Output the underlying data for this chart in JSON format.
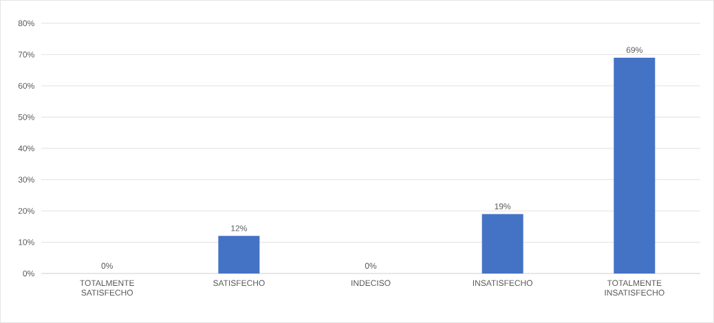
{
  "chart_data": {
    "type": "bar",
    "categories": [
      "TOTALMENTE SATISFECHO",
      "SATISFECHO",
      "INDECISO",
      "INSATISFECHO",
      "TOTALMENTE INSATISFECHO"
    ],
    "values": [
      0,
      12,
      0,
      19,
      69
    ],
    "value_labels": [
      "0%",
      "12%",
      "0%",
      "19%",
      "69%"
    ],
    "color": "#4472c4",
    "ylim": [
      0,
      80
    ],
    "yticks": [
      {
        "value": 0,
        "label": "0%"
      },
      {
        "value": 10,
        "label": "10%"
      },
      {
        "value": 20,
        "label": "20%"
      },
      {
        "value": 30,
        "label": "30%"
      },
      {
        "value": 40,
        "label": "40%"
      },
      {
        "value": 50,
        "label": "50%"
      },
      {
        "value": 60,
        "label": "60%"
      },
      {
        "value": 70,
        "label": "70%"
      },
      {
        "value": 80,
        "label": "80%"
      }
    ],
    "grid": "y"
  }
}
